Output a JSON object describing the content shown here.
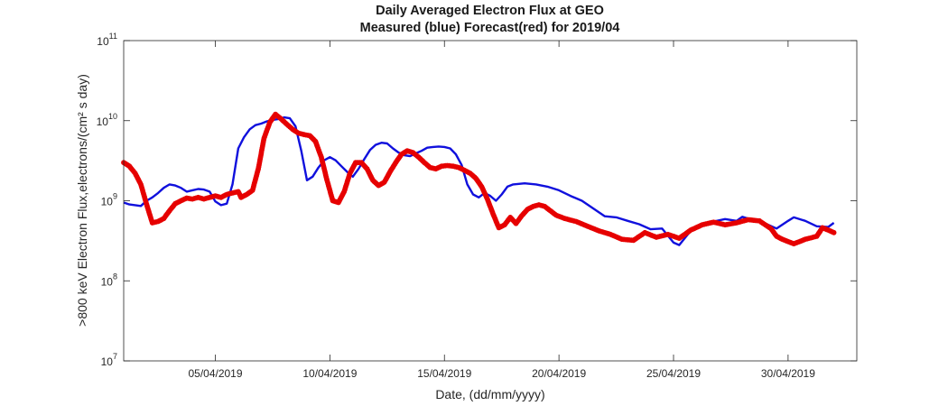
{
  "chart_data": {
    "type": "line",
    "title": "Daily Averaged Electron Flux at GEO",
    "subtitle": "Measured (blue) Forecast(red) for 2019/04",
    "xlabel": "Date, (dd/mm/yyyy)",
    "ylabel": ">800 keV Electron Flux,electrons/(cm² s day)",
    "yscale": "log",
    "ylim": [
      10000000.0,
      100000000000.0
    ],
    "xlim": [
      "2019-04-01",
      "2019-05-03"
    ],
    "grid": false,
    "x_ticks": [
      {
        "date": "2019-04-05",
        "label": "05/04/2019"
      },
      {
        "date": "2019-04-10",
        "label": "10/04/2019"
      },
      {
        "date": "2019-04-15",
        "label": "15/04/2019"
      },
      {
        "date": "2019-04-20",
        "label": "20/04/2019"
      },
      {
        "date": "2019-04-25",
        "label": "25/04/2019"
      },
      {
        "date": "2019-04-30",
        "label": "30/04/2019"
      }
    ],
    "y_ticks": [
      {
        "value": 10000000.0,
        "base": "10",
        "exp": "7"
      },
      {
        "value": 100000000.0,
        "base": "10",
        "exp": "8"
      },
      {
        "value": 1000000000.0,
        "base": "10",
        "exp": "9"
      },
      {
        "value": 10000000000.0,
        "base": "10",
        "exp": "10"
      },
      {
        "value": 100000000000.0,
        "base": "10",
        "exp": "11"
      }
    ],
    "series": [
      {
        "label": "Measured",
        "color": "#1010dd",
        "style": "line",
        "points": [
          [
            "2019-04-01 00:00",
            950000000.0
          ],
          [
            "2019-04-01 06:00",
            900000000.0
          ],
          [
            "2019-04-01 12:00",
            880000000.0
          ],
          [
            "2019-04-01 18:00",
            860000000.0
          ],
          [
            "2019-04-02 00:00",
            1000000000.0
          ],
          [
            "2019-04-02 06:00",
            1100000000.0
          ],
          [
            "2019-04-02 12:00",
            1250000000.0
          ],
          [
            "2019-04-02 18:00",
            1450000000.0
          ],
          [
            "2019-04-03 00:00",
            1600000000.0
          ],
          [
            "2019-04-03 06:00",
            1550000000.0
          ],
          [
            "2019-04-03 12:00",
            1450000000.0
          ],
          [
            "2019-04-03 18:00",
            1300000000.0
          ],
          [
            "2019-04-04 00:00",
            1350000000.0
          ],
          [
            "2019-04-04 06:00",
            1400000000.0
          ],
          [
            "2019-04-04 12:00",
            1380000000.0
          ],
          [
            "2019-04-04 18:00",
            1300000000.0
          ],
          [
            "2019-04-05 00:00",
            980000000.0
          ],
          [
            "2019-04-05 06:00",
            880000000.0
          ],
          [
            "2019-04-05 12:00",
            920000000.0
          ],
          [
            "2019-04-05 18:00",
            1600000000.0
          ],
          [
            "2019-04-06 00:00",
            4500000000.0
          ],
          [
            "2019-04-06 06:00",
            6200000000.0
          ],
          [
            "2019-04-06 12:00",
            7800000000.0
          ],
          [
            "2019-04-06 18:00",
            8800000000.0
          ],
          [
            "2019-04-07 00:00",
            9200000000.0
          ],
          [
            "2019-04-07 06:00",
            9800000000.0
          ],
          [
            "2019-04-07 12:00",
            10200000000.0
          ],
          [
            "2019-04-07 18:00",
            10500000000.0
          ],
          [
            "2019-04-08 00:00",
            11000000000.0
          ],
          [
            "2019-04-08 06:00",
            10700000000.0
          ],
          [
            "2019-04-08 12:00",
            8500000000.0
          ],
          [
            "2019-04-08 18:00",
            4200000000.0
          ],
          [
            "2019-04-09 00:00",
            1800000000.0
          ],
          [
            "2019-04-09 06:00",
            2000000000.0
          ],
          [
            "2019-04-09 12:00",
            2600000000.0
          ],
          [
            "2019-04-09 18:00",
            3200000000.0
          ],
          [
            "2019-04-10 00:00",
            3500000000.0
          ],
          [
            "2019-04-10 06:00",
            3200000000.0
          ],
          [
            "2019-04-10 12:00",
            2700000000.0
          ],
          [
            "2019-04-10 18:00",
            2300000000.0
          ],
          [
            "2019-04-11 00:00",
            2000000000.0
          ],
          [
            "2019-04-11 06:00",
            2500000000.0
          ],
          [
            "2019-04-11 12:00",
            3300000000.0
          ],
          [
            "2019-04-11 18:00",
            4300000000.0
          ],
          [
            "2019-04-12 00:00",
            5000000000.0
          ],
          [
            "2019-04-12 06:00",
            5300000000.0
          ],
          [
            "2019-04-12 12:00",
            5200000000.0
          ],
          [
            "2019-04-12 18:00",
            4500000000.0
          ],
          [
            "2019-04-13 00:00",
            4000000000.0
          ],
          [
            "2019-04-13 06:00",
            3700000000.0
          ],
          [
            "2019-04-13 12:00",
            3600000000.0
          ],
          [
            "2019-04-13 18:00",
            3900000000.0
          ],
          [
            "2019-04-14 00:00",
            4200000000.0
          ],
          [
            "2019-04-14 06:00",
            4600000000.0
          ],
          [
            "2019-04-14 12:00",
            4700000000.0
          ],
          [
            "2019-04-14 18:00",
            4750000000.0
          ],
          [
            "2019-04-15 00:00",
            4700000000.0
          ],
          [
            "2019-04-15 06:00",
            4500000000.0
          ],
          [
            "2019-04-15 12:00",
            3800000000.0
          ],
          [
            "2019-04-15 18:00",
            2800000000.0
          ],
          [
            "2019-04-16 00:00",
            1600000000.0
          ],
          [
            "2019-04-16 06:00",
            1200000000.0
          ],
          [
            "2019-04-16 12:00",
            1100000000.0
          ],
          [
            "2019-04-16 18:00",
            1250000000.0
          ],
          [
            "2019-04-17 00:00",
            1150000000.0
          ],
          [
            "2019-04-17 06:00",
            1000000000.0
          ],
          [
            "2019-04-17 12:00",
            1200000000.0
          ],
          [
            "2019-04-17 18:00",
            1500000000.0
          ],
          [
            "2019-04-18 00:00",
            1600000000.0
          ],
          [
            "2019-04-18 12:00",
            1650000000.0
          ],
          [
            "2019-04-19 00:00",
            1600000000.0
          ],
          [
            "2019-04-19 12:00",
            1500000000.0
          ],
          [
            "2019-04-20 00:00",
            1350000000.0
          ],
          [
            "2019-04-20 12:00",
            1150000000.0
          ],
          [
            "2019-04-21 00:00",
            1000000000.0
          ],
          [
            "2019-04-21 12:00",
            800000000.0
          ],
          [
            "2019-04-22 00:00",
            640000000.0
          ],
          [
            "2019-04-22 12:00",
            620000000.0
          ],
          [
            "2019-04-23 00:00",
            560000000.0
          ],
          [
            "2019-04-23 12:00",
            510000000.0
          ],
          [
            "2019-04-24 00:00",
            440000000.0
          ],
          [
            "2019-04-24 12:00",
            450000000.0
          ],
          [
            "2019-04-25 00:00",
            300000000.0
          ],
          [
            "2019-04-25 06:00",
            280000000.0
          ],
          [
            "2019-04-25 18:00",
            420000000.0
          ],
          [
            "2019-04-26 06:00",
            480000000.0
          ],
          [
            "2019-04-26 18:00",
            550000000.0
          ],
          [
            "2019-04-27 06:00",
            590000000.0
          ],
          [
            "2019-04-27 18:00",
            560000000.0
          ],
          [
            "2019-04-28 00:00",
            630000000.0
          ],
          [
            "2019-04-28 12:00",
            570000000.0
          ],
          [
            "2019-04-29 00:00",
            520000000.0
          ],
          [
            "2019-04-29 12:00",
            450000000.0
          ],
          [
            "2019-04-30 00:00",
            560000000.0
          ],
          [
            "2019-04-30 06:00",
            620000000.0
          ],
          [
            "2019-04-30 18:00",
            560000000.0
          ],
          [
            "2019-05-01 06:00",
            480000000.0
          ],
          [
            "2019-05-01 18:00",
            470000000.0
          ],
          [
            "2019-05-02 00:00",
            530000000.0
          ]
        ]
      },
      {
        "label": "Forecast",
        "color": "#e60000",
        "style": "dots",
        "points": [
          [
            "2019-04-01 00:00",
            3000000000.0
          ],
          [
            "2019-04-01 06:00",
            2700000000.0
          ],
          [
            "2019-04-01 12:00",
            2200000000.0
          ],
          [
            "2019-04-01 18:00",
            1600000000.0
          ],
          [
            "2019-04-02 00:00",
            900000000.0
          ],
          [
            "2019-04-02 06:00",
            530000000.0
          ],
          [
            "2019-04-02 12:00",
            550000000.0
          ],
          [
            "2019-04-02 18:00",
            600000000.0
          ],
          [
            "2019-04-03 00:00",
            750000000.0
          ],
          [
            "2019-04-03 06:00",
            920000000.0
          ],
          [
            "2019-04-03 12:00",
            1000000000.0
          ],
          [
            "2019-04-03 18:00",
            1080000000.0
          ],
          [
            "2019-04-04 00:00",
            1050000000.0
          ],
          [
            "2019-04-04 06:00",
            1100000000.0
          ],
          [
            "2019-04-04 12:00",
            1050000000.0
          ],
          [
            "2019-04-04 18:00",
            1100000000.0
          ],
          [
            "2019-04-05 00:00",
            1150000000.0
          ],
          [
            "2019-04-05 06:00",
            1100000000.0
          ],
          [
            "2019-04-05 12:00",
            1200000000.0
          ],
          [
            "2019-04-05 18:00",
            1250000000.0
          ],
          [
            "2019-04-06 00:00",
            1300000000.0
          ],
          [
            "2019-04-06 03:00",
            1100000000.0
          ],
          [
            "2019-04-06 09:00",
            1200000000.0
          ],
          [
            "2019-04-06 15:00",
            1350000000.0
          ],
          [
            "2019-04-06 21:00",
            2500000000.0
          ],
          [
            "2019-04-07 03:00",
            6000000000.0
          ],
          [
            "2019-04-07 09:00",
            9500000000.0
          ],
          [
            "2019-04-07 15:00",
            12000000000.0
          ],
          [
            "2019-04-07 21:00",
            10500000000.0
          ],
          [
            "2019-04-08 03:00",
            9000000000.0
          ],
          [
            "2019-04-08 09:00",
            7800000000.0
          ],
          [
            "2019-04-08 15:00",
            7000000000.0
          ],
          [
            "2019-04-08 21:00",
            6700000000.0
          ],
          [
            "2019-04-09 03:00",
            6500000000.0
          ],
          [
            "2019-04-09 09:00",
            5500000000.0
          ],
          [
            "2019-04-09 15:00",
            3500000000.0
          ],
          [
            "2019-04-09 21:00",
            1800000000.0
          ],
          [
            "2019-04-10 03:00",
            1000000000.0
          ],
          [
            "2019-04-10 09:00",
            950000000.0
          ],
          [
            "2019-04-10 15:00",
            1300000000.0
          ],
          [
            "2019-04-10 21:00",
            2200000000.0
          ],
          [
            "2019-04-11 03:00",
            3000000000.0
          ],
          [
            "2019-04-11 09:00",
            3000000000.0
          ],
          [
            "2019-04-11 15:00",
            2500000000.0
          ],
          [
            "2019-04-11 21:00",
            1800000000.0
          ],
          [
            "2019-04-12 03:00",
            1550000000.0
          ],
          [
            "2019-04-12 09:00",
            1700000000.0
          ],
          [
            "2019-04-12 15:00",
            2300000000.0
          ],
          [
            "2019-04-12 21:00",
            3000000000.0
          ],
          [
            "2019-04-13 03:00",
            3800000000.0
          ],
          [
            "2019-04-13 09:00",
            4200000000.0
          ],
          [
            "2019-04-13 15:00",
            4000000000.0
          ],
          [
            "2019-04-13 21:00",
            3500000000.0
          ],
          [
            "2019-04-14 03:00",
            3000000000.0
          ],
          [
            "2019-04-14 09:00",
            2600000000.0
          ],
          [
            "2019-04-14 15:00",
            2500000000.0
          ],
          [
            "2019-04-14 21:00",
            2700000000.0
          ],
          [
            "2019-04-15 03:00",
            2750000000.0
          ],
          [
            "2019-04-15 09:00",
            2700000000.0
          ],
          [
            "2019-04-15 15:00",
            2600000000.0
          ],
          [
            "2019-04-15 21:00",
            2400000000.0
          ],
          [
            "2019-04-16 03:00",
            2200000000.0
          ],
          [
            "2019-04-16 09:00",
            1900000000.0
          ],
          [
            "2019-04-16 15:00",
            1500000000.0
          ],
          [
            "2019-04-16 21:00",
            1050000000.0
          ],
          [
            "2019-04-17 03:00",
            680000000.0
          ],
          [
            "2019-04-17 09:00",
            460000000.0
          ],
          [
            "2019-04-17 15:00",
            500000000.0
          ],
          [
            "2019-04-17 21:00",
            620000000.0
          ],
          [
            "2019-04-18 03:00",
            520000000.0
          ],
          [
            "2019-04-18 09:00",
            650000000.0
          ],
          [
            "2019-04-18 15:00",
            780000000.0
          ],
          [
            "2019-04-18 21:00",
            850000000.0
          ],
          [
            "2019-04-19 03:00",
            890000000.0
          ],
          [
            "2019-04-19 09:00",
            850000000.0
          ],
          [
            "2019-04-19 15:00",
            750000000.0
          ],
          [
            "2019-04-19 21:00",
            660000000.0
          ],
          [
            "2019-04-20 06:00",
            600000000.0
          ],
          [
            "2019-04-20 18:00",
            550000000.0
          ],
          [
            "2019-04-21 06:00",
            480000000.0
          ],
          [
            "2019-04-21 18:00",
            420000000.0
          ],
          [
            "2019-04-22 06:00",
            380000000.0
          ],
          [
            "2019-04-22 18:00",
            330000000.0
          ],
          [
            "2019-04-23 06:00",
            320000000.0
          ],
          [
            "2019-04-23 18:00",
            400000000.0
          ],
          [
            "2019-04-24 06:00",
            350000000.0
          ],
          [
            "2019-04-24 18:00",
            380000000.0
          ],
          [
            "2019-04-25 06:00",
            340000000.0
          ],
          [
            "2019-04-25 18:00",
            430000000.0
          ],
          [
            "2019-04-26 06:00",
            500000000.0
          ],
          [
            "2019-04-26 18:00",
            540000000.0
          ],
          [
            "2019-04-27 06:00",
            500000000.0
          ],
          [
            "2019-04-27 18:00",
            530000000.0
          ],
          [
            "2019-04-28 06:00",
            580000000.0
          ],
          [
            "2019-04-28 18:00",
            560000000.0
          ],
          [
            "2019-04-29 06:00",
            450000000.0
          ],
          [
            "2019-04-29 12:00",
            360000000.0
          ],
          [
            "2019-04-29 18:00",
            330000000.0
          ],
          [
            "2019-04-30 06:00",
            290000000.0
          ],
          [
            "2019-04-30 18:00",
            330000000.0
          ],
          [
            "2019-05-01 06:00",
            360000000.0
          ],
          [
            "2019-05-01 12:00",
            460000000.0
          ],
          [
            "2019-05-01 18:00",
            430000000.0
          ],
          [
            "2019-05-02 00:00",
            400000000.0
          ]
        ]
      }
    ]
  }
}
